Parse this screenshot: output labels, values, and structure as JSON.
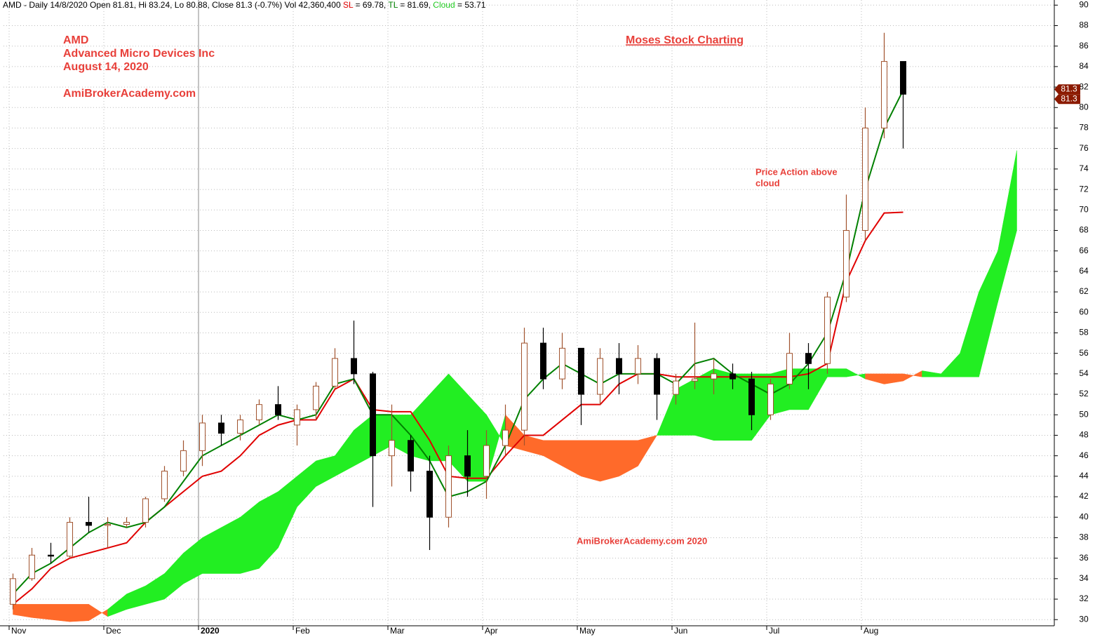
{
  "header": [
    {
      "text": "AMD - Daily 14/8/2020 Open 81.81, Hi 83.24, Lo 80.88, Close 81.3 (-0.7%) Vol 42,360,400 ",
      "color": "#000000"
    },
    {
      "text": "SL",
      "color": "#e00000"
    },
    {
      "text": " = 69.78, ",
      "color": "#000000"
    },
    {
      "text": "TL",
      "color": "#008000"
    },
    {
      "text": " = 81.69, ",
      "color": "#000000"
    },
    {
      "text": "Cloud",
      "color": "#22cc22"
    },
    {
      "text": " = 53.71",
      "color": "#000000"
    }
  ],
  "annotations": {
    "ticker": "AMD",
    "company": "Advanced Micro Devices Inc",
    "date": "August 14, 2020",
    "site": "AmiBrokerAcademy.com",
    "brand": "Moses Stock Charting",
    "note_line1": "Price Action above",
    "note_line2": "cloud",
    "watermark": "AmiBrokerAcademy.com  2020"
  },
  "chart_data": {
    "type": "candlestick",
    "categories": [
      "Nov",
      null,
      null,
      null,
      null,
      "Dec",
      null,
      null,
      null,
      null,
      "2020",
      null,
      null,
      null,
      null,
      "Feb",
      null,
      null,
      null,
      null,
      "Mar",
      null,
      null,
      null,
      null,
      "Apr",
      null,
      null,
      null,
      null,
      "May",
      null,
      null,
      null,
      null,
      "Jun",
      null,
      null,
      null,
      null,
      "Jul",
      null,
      null,
      null,
      null,
      "Aug",
      null,
      null,
      null,
      null,
      null,
      null,
      null,
      null
    ],
    "candles": {
      "name": "AMD",
      "up_color": "#a0522d",
      "down_color": "#000000",
      "open": [
        31.5,
        34,
        36.3,
        36.2,
        39.5,
        39.2,
        39.3,
        39.5,
        41.8,
        44.5,
        46.5,
        49.2,
        48.2,
        49.5,
        51,
        49,
        50.5,
        52.8,
        55.5,
        54,
        46,
        47.5,
        44.5,
        40,
        46,
        44,
        47,
        48.5,
        57,
        53.5,
        56.5,
        52,
        55.5,
        54,
        55.5,
        52,
        53.3,
        53.5,
        54,
        53.5,
        50,
        53,
        56,
        55,
        61.5,
        68,
        78,
        84.5,
        null,
        null,
        null,
        null,
        null,
        null
      ],
      "high": [
        34.5,
        37,
        37.5,
        40,
        42,
        40,
        40,
        42,
        45,
        47.5,
        50,
        50,
        50,
        51.5,
        52.8,
        51,
        53.2,
        56.5,
        59.2,
        54.2,
        51,
        48,
        46,
        47,
        48.5,
        48.5,
        51,
        58.5,
        58.5,
        58,
        56.5,
        56.5,
        57,
        56.8,
        56,
        54,
        59,
        55.5,
        55,
        54.2,
        53.5,
        58,
        57,
        62,
        71.5,
        80,
        87.3,
        84.5,
        null,
        null,
        null,
        null,
        null,
        null
      ],
      "low": [
        31,
        33.8,
        35.5,
        36,
        38.5,
        37,
        39,
        39,
        41.5,
        44,
        45,
        47,
        47.5,
        49,
        49.5,
        47,
        49.5,
        52.5,
        53,
        41,
        43,
        42.5,
        36.8,
        39,
        42,
        41.8,
        46,
        47,
        52.5,
        52.5,
        49,
        51,
        52,
        53,
        49.5,
        51,
        52.5,
        52,
        52.5,
        48.5,
        49.5,
        52.5,
        52.5,
        54,
        61,
        67,
        77,
        76,
        null,
        null,
        null,
        null,
        null,
        null
      ],
      "close": [
        34,
        36.3,
        36.2,
        39.5,
        39.2,
        39.3,
        39.5,
        41.8,
        44.5,
        46.5,
        49.2,
        48.2,
        49.5,
        51,
        50,
        50.5,
        52.8,
        55.5,
        54,
        46,
        47.5,
        44.5,
        40,
        46,
        44,
        47,
        48.5,
        57,
        53.5,
        56.5,
        52,
        55.5,
        54,
        55.5,
        52,
        53.3,
        53.5,
        54,
        53.5,
        50,
        53,
        56,
        55,
        61.5,
        68,
        78,
        84.5,
        81.3,
        null,
        null,
        null,
        null,
        null,
        null
      ]
    },
    "series": [
      {
        "name": "SL",
        "color": "#e00000",
        "values": [
          31.5,
          33,
          35,
          36,
          36.5,
          37,
          37.5,
          39.5,
          41,
          42.5,
          44,
          44.5,
          46,
          48,
          49,
          49.5,
          49.5,
          52.5,
          53.5,
          50.5,
          50.3,
          50.3,
          47.5,
          44,
          43.8,
          43.8,
          46,
          48,
          48,
          49.5,
          51,
          51,
          53,
          54,
          54,
          53.7,
          53.7,
          53.7,
          53.7,
          53.7,
          53.7,
          53.7,
          54,
          55,
          63,
          67,
          69.7,
          69.78,
          null,
          null,
          null,
          null,
          null,
          null
        ]
      },
      {
        "name": "TL",
        "color": "#008000",
        "values": [
          32.5,
          34.5,
          35.5,
          37,
          38.5,
          39.5,
          39,
          39.5,
          41,
          43.5,
          46,
          47,
          48,
          49,
          50,
          49.5,
          50,
          53,
          53.5,
          50,
          50,
          48,
          45.5,
          42,
          42.5,
          43.5,
          47,
          51.5,
          53.5,
          55,
          54,
          53,
          54,
          54,
          54,
          53,
          55,
          55.5,
          54,
          53,
          52,
          53,
          55,
          58,
          64,
          72,
          78,
          81.69,
          null,
          null,
          null,
          null,
          null,
          null
        ]
      }
    ],
    "cloud": {
      "name": "Cloud",
      "up_color": "#22ee22",
      "down_color": "#ff6a2a",
      "span_a": [
        30.5,
        30.2,
        30,
        29.8,
        29.9,
        31,
        32.5,
        33.3,
        34.5,
        36.5,
        38,
        39,
        40,
        41.5,
        42.5,
        44,
        45.5,
        46,
        48.5,
        50,
        50,
        50,
        52,
        54,
        52,
        50,
        47,
        46.5,
        46,
        45,
        44,
        43.5,
        44,
        45,
        48,
        52.5,
        53.5,
        54.5,
        54,
        54,
        54,
        54.5,
        54.5,
        54.5,
        54.5,
        53.5,
        53,
        53.3,
        54.3,
        54,
        56,
        62,
        66,
        75.8
      ],
      "span_b": [
        31.5,
        31.5,
        31.5,
        31.5,
        31.5,
        30.3,
        31,
        31.5,
        32,
        33.5,
        34.5,
        34.5,
        34.5,
        35,
        37,
        41,
        43,
        44,
        45,
        46,
        47,
        46,
        45.5,
        45.5,
        43.5,
        43.5,
        50,
        48,
        47.5,
        47.5,
        47.5,
        47.5,
        47.5,
        47.5,
        48,
        48,
        48,
        47.5,
        47.5,
        47.5,
        50,
        50.5,
        50.5,
        53.7,
        53.7,
        54,
        54,
        54,
        53.7,
        53.7,
        53.7,
        53.7,
        61,
        68
      ]
    },
    "last_price": 81.3,
    "ylim": [
      29.4,
      90.5
    ],
    "yticks": [
      30,
      32,
      34,
      36,
      38,
      40,
      42,
      44,
      46,
      48,
      50,
      52,
      54,
      56,
      58,
      60,
      62,
      64,
      66,
      68,
      70,
      72,
      74,
      76,
      78,
      80,
      82,
      84,
      86,
      88,
      90
    ],
    "grid": true
  }
}
